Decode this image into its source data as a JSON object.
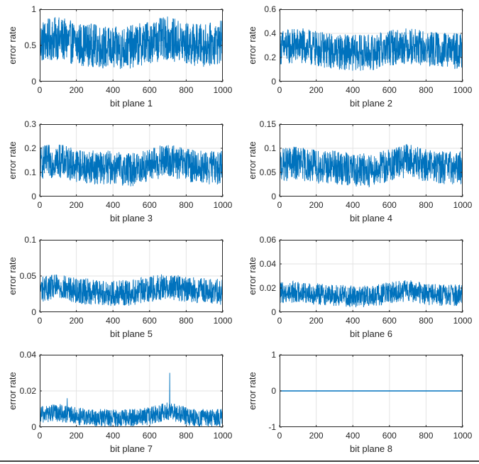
{
  "chart_data": [
    {
      "type": "line",
      "xlabel": "bit plane 1",
      "ylabel": "error rate",
      "xlim": [
        0,
        1000
      ],
      "ylim": [
        0,
        1
      ],
      "xticks": [
        "0",
        "200",
        "400",
        "600",
        "800",
        "1000"
      ],
      "yticks": [
        "0",
        "0.5",
        "1"
      ],
      "grid": true,
      "color": "#0072BD",
      "series": [
        {
          "x": [
            0,
            100,
            200,
            300,
            400,
            500,
            600,
            700,
            800,
            900,
            1000
          ],
          "values": [
            0.55,
            0.6,
            0.52,
            0.5,
            0.45,
            0.48,
            0.55,
            0.6,
            0.52,
            0.5,
            0.55
          ],
          "noise_amplitude": 0.3
        }
      ]
    },
    {
      "type": "line",
      "xlabel": "bit plane 2",
      "ylabel": "error rate",
      "xlim": [
        0,
        1000
      ],
      "ylim": [
        0,
        0.6
      ],
      "xticks": [
        "0",
        "200",
        "400",
        "600",
        "800",
        "1000"
      ],
      "yticks": [
        "0",
        "0.2",
        "0.4",
        "0.6"
      ],
      "grid": true,
      "color": "#0072BD",
      "series": [
        {
          "x": [
            0,
            100,
            200,
            300,
            400,
            500,
            600,
            700,
            800,
            900,
            1000
          ],
          "values": [
            0.28,
            0.3,
            0.27,
            0.25,
            0.24,
            0.24,
            0.28,
            0.3,
            0.27,
            0.26,
            0.25
          ],
          "noise_amplitude": 0.15
        }
      ]
    },
    {
      "type": "line",
      "xlabel": "bit plane 3",
      "ylabel": "error rate",
      "xlim": [
        0,
        1000
      ],
      "ylim": [
        0,
        0.3
      ],
      "xticks": [
        "0",
        "200",
        "400",
        "600",
        "800",
        "1000"
      ],
      "yticks": [
        "0",
        "0.1",
        "0.2",
        "0.3"
      ],
      "grid": true,
      "color": "#0072BD",
      "series": [
        {
          "x": [
            0,
            100,
            200,
            300,
            400,
            500,
            600,
            700,
            800,
            900,
            1000
          ],
          "values": [
            0.14,
            0.15,
            0.13,
            0.12,
            0.12,
            0.11,
            0.13,
            0.15,
            0.13,
            0.12,
            0.12
          ],
          "noise_amplitude": 0.07
        }
      ]
    },
    {
      "type": "line",
      "xlabel": "bit plane 4",
      "ylabel": "error rate",
      "xlim": [
        0,
        1000
      ],
      "ylim": [
        0,
        0.15
      ],
      "xticks": [
        "0",
        "200",
        "400",
        "600",
        "800",
        "1000"
      ],
      "yticks": [
        "0",
        "0.05",
        "0.1",
        "0.15"
      ],
      "grid": true,
      "color": "#0072BD",
      "series": [
        {
          "x": [
            0,
            100,
            200,
            300,
            400,
            500,
            600,
            700,
            800,
            900,
            1000
          ],
          "values": [
            0.065,
            0.07,
            0.062,
            0.06,
            0.055,
            0.055,
            0.065,
            0.075,
            0.065,
            0.06,
            0.06
          ],
          "noise_amplitude": 0.035
        }
      ]
    },
    {
      "type": "line",
      "xlabel": "bit plane 5",
      "ylabel": "error rate",
      "xlim": [
        0,
        1000
      ],
      "ylim": [
        0,
        0.1
      ],
      "xticks": [
        "0",
        "200",
        "400",
        "600",
        "800",
        "1000"
      ],
      "yticks": [
        "0",
        "0.05",
        "0.1"
      ],
      "grid": true,
      "color": "#0072BD",
      "series": [
        {
          "x": [
            0,
            100,
            200,
            300,
            400,
            500,
            600,
            700,
            800,
            900,
            1000
          ],
          "values": [
            0.032,
            0.035,
            0.03,
            0.028,
            0.026,
            0.027,
            0.032,
            0.036,
            0.031,
            0.029,
            0.028
          ],
          "noise_amplitude": 0.018
        }
      ]
    },
    {
      "type": "line",
      "xlabel": "bit plane 6",
      "ylabel": "error rate",
      "xlim": [
        0,
        1000
      ],
      "ylim": [
        0,
        0.06
      ],
      "xticks": [
        "0",
        "200",
        "400",
        "600",
        "800",
        "1000"
      ],
      "yticks": [
        "0",
        "0.02",
        "0.04",
        "0.06"
      ],
      "grid": true,
      "color": "#0072BD",
      "series": [
        {
          "x": [
            0,
            100,
            200,
            300,
            400,
            500,
            600,
            700,
            800,
            900,
            1000
          ],
          "values": [
            0.016,
            0.017,
            0.015,
            0.014,
            0.013,
            0.013,
            0.016,
            0.018,
            0.015,
            0.014,
            0.014
          ],
          "noise_amplitude": 0.009
        }
      ]
    },
    {
      "type": "line",
      "xlabel": "bit plane 7",
      "ylabel": "error rate",
      "xlim": [
        0,
        1000
      ],
      "ylim": [
        0,
        0.04
      ],
      "xticks": [
        "0",
        "200",
        "400",
        "600",
        "800",
        "1000"
      ],
      "yticks": [
        "0",
        "0.02",
        "0.04"
      ],
      "grid": true,
      "color": "#0072BD",
      "series": [
        {
          "x": [
            0,
            100,
            200,
            300,
            400,
            500,
            600,
            700,
            800,
            900,
            1000
          ],
          "values": [
            0.007,
            0.008,
            0.006,
            0.005,
            0.005,
            0.005,
            0.006,
            0.009,
            0.006,
            0.005,
            0.005
          ],
          "noise_amplitude": 0.005,
          "spikes": [
            {
              "x": 710,
              "y": 0.03
            },
            {
              "x": 150,
              "y": 0.016
            }
          ]
        }
      ]
    },
    {
      "type": "line",
      "xlabel": "bit plane 8",
      "ylabel": "error rate",
      "xlim": [
        0,
        1000
      ],
      "ylim": [
        -1,
        1
      ],
      "xticks": [
        "0",
        "200",
        "400",
        "600",
        "800",
        "1000"
      ],
      "yticks": [
        "-1",
        "0",
        "1"
      ],
      "grid": true,
      "color": "#0072BD",
      "series": [
        {
          "x": [
            0,
            1000
          ],
          "values": [
            0,
            0
          ],
          "noise_amplitude": 0
        }
      ]
    }
  ]
}
